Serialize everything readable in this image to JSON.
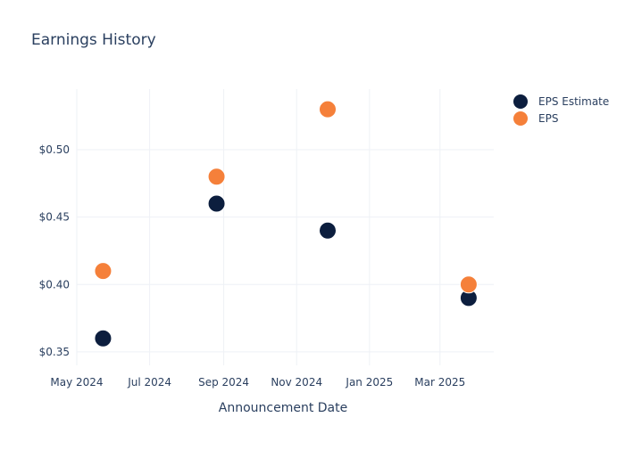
{
  "chart_data": {
    "type": "scatter",
    "title": "Earnings History",
    "xlabel": "Announcement Date",
    "ylabel": "",
    "x_ticks": [
      "May 2024",
      "Jul 2024",
      "Sep 2024",
      "Nov 2024",
      "Jan 2025",
      "Mar 2025"
    ],
    "y_ticks": [
      "$0.35",
      "$0.40",
      "$0.45",
      "$0.50"
    ],
    "ylim": [
      0.34,
      0.545
    ],
    "xlim": [
      "2024-05-01",
      "2025-04-15"
    ],
    "grid": true,
    "legend_position": "top-right",
    "series": [
      {
        "name": "EPS Estimate",
        "color": "#0c1e3e",
        "points": [
          {
            "x": "2024-05-23",
            "y": 0.36
          },
          {
            "x": "2024-08-26",
            "y": 0.46
          },
          {
            "x": "2024-11-27",
            "y": 0.44
          },
          {
            "x": "2025-03-25",
            "y": 0.39
          }
        ]
      },
      {
        "name": "EPS",
        "color": "#f5803a",
        "points": [
          {
            "x": "2024-05-23",
            "y": 0.41
          },
          {
            "x": "2024-08-26",
            "y": 0.48
          },
          {
            "x": "2024-11-27",
            "y": 0.53
          },
          {
            "x": "2025-03-25",
            "y": 0.4
          }
        ]
      }
    ]
  }
}
